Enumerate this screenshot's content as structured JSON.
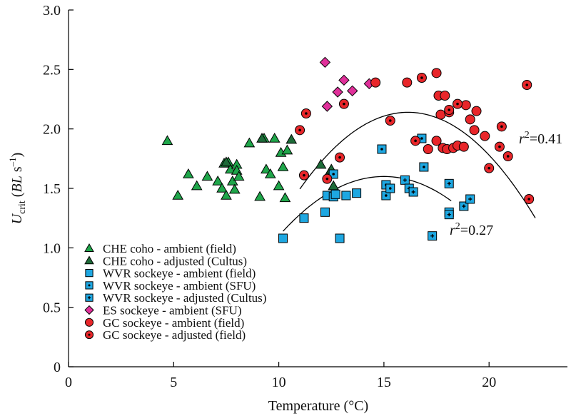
{
  "chart_data": {
    "type": "scatter",
    "xlabel": "Temperature (°C)",
    "ylabel": {
      "main": "U",
      "sub": "crit",
      "paren": "(BL s",
      "sup": "–1",
      "close": ")"
    },
    "xlim": [
      0,
      24
    ],
    "ylim": [
      0,
      3.0
    ],
    "x_ticks": [
      0,
      5,
      10,
      15,
      20
    ],
    "x_tick_labels": [
      "0",
      "5",
      "10",
      "15",
      "20"
    ],
    "y_ticks": [
      0,
      0.5,
      1.0,
      1.5,
      2.0,
      2.5,
      3.0
    ],
    "y_tick_labels": [
      "0",
      "0.5",
      "1.0",
      "1.5",
      "2.0",
      "2.5",
      "3.0"
    ],
    "grid": false,
    "legend_position": "bottom-left",
    "series": [
      {
        "name": "CHE coho - ambient (field)",
        "marker": "triangle",
        "color": "#1fa64a",
        "dot": false,
        "points": [
          [
            4.7,
            1.9
          ],
          [
            5.2,
            1.44
          ],
          [
            5.7,
            1.62
          ],
          [
            6.1,
            1.52
          ],
          [
            6.6,
            1.6
          ],
          [
            7.1,
            1.56
          ],
          [
            7.3,
            1.5
          ],
          [
            7.4,
            1.71
          ],
          [
            7.5,
            1.44
          ],
          [
            7.6,
            1.72
          ],
          [
            7.7,
            1.66
          ],
          [
            7.8,
            1.56
          ],
          [
            7.9,
            1.49
          ],
          [
            8.0,
            1.7
          ],
          [
            8.0,
            1.65
          ],
          [
            8.1,
            1.6
          ],
          [
            8.6,
            1.88
          ],
          [
            9.1,
            1.43
          ],
          [
            9.3,
            1.92
          ],
          [
            9.4,
            1.66
          ],
          [
            9.6,
            1.62
          ],
          [
            9.8,
            1.92
          ],
          [
            10.0,
            1.52
          ],
          [
            10.1,
            1.8
          ],
          [
            10.2,
            1.68
          ],
          [
            10.3,
            1.42
          ],
          [
            10.4,
            1.82
          ]
        ]
      },
      {
        "name": "CHE coho - adjusted (Cultus)",
        "marker": "triangle",
        "color": "#1d6b38",
        "dot": false,
        "points": [
          [
            7.5,
            1.72
          ],
          [
            9.2,
            1.92
          ],
          [
            10.6,
            1.91
          ],
          [
            12.0,
            1.7
          ],
          [
            12.4,
            1.63
          ],
          [
            12.5,
            1.66
          ],
          [
            12.6,
            1.52
          ]
        ]
      },
      {
        "name": "WVR sockeye - ambient (field)",
        "marker": "square",
        "color": "#1ea7e1",
        "dot": false,
        "points": [
          [
            10.2,
            1.08
          ],
          [
            11.2,
            1.25
          ],
          [
            12.2,
            1.3
          ],
          [
            12.3,
            1.44
          ],
          [
            12.6,
            1.43
          ],
          [
            12.7,
            1.45
          ],
          [
            12.9,
            1.08
          ],
          [
            13.2,
            1.44
          ],
          [
            13.7,
            1.46
          ]
        ]
      },
      {
        "name": "WVR sockeye - ambient (SFU)",
        "marker": "square",
        "color": "#1ea7e1",
        "dot": true,
        "points": [
          [
            12.6,
            1.62
          ],
          [
            14.9,
            1.83
          ],
          [
            15.1,
            1.53
          ],
          [
            15.1,
            1.44
          ],
          [
            15.3,
            1.5
          ],
          [
            16.8,
            1.92
          ],
          [
            16.9,
            1.68
          ]
        ]
      },
      {
        "name": "WVR sockeye - adjusted (Cultus)",
        "marker": "square",
        "color": "#1ea7e1",
        "dot": "cross",
        "points": [
          [
            16.0,
            1.57
          ],
          [
            16.2,
            1.5
          ],
          [
            16.4,
            1.47
          ],
          [
            17.3,
            1.1
          ],
          [
            18.1,
            1.54
          ],
          [
            18.1,
            1.3
          ],
          [
            18.1,
            1.28
          ],
          [
            18.8,
            1.35
          ],
          [
            19.1,
            1.41
          ]
        ]
      },
      {
        "name": "ES sockeye - ambient (SFU)",
        "marker": "diamond",
        "color": "#e0309a",
        "dot": false,
        "points": [
          [
            12.2,
            2.56
          ],
          [
            12.3,
            2.19
          ],
          [
            12.8,
            2.31
          ],
          [
            13.1,
            2.41
          ],
          [
            13.5,
            2.32
          ],
          [
            14.3,
            2.38
          ]
        ]
      },
      {
        "name": "GC sockeye - ambient (field)",
        "marker": "circle",
        "color": "#e8262a",
        "dot": false,
        "points": [
          [
            14.6,
            2.39
          ],
          [
            16.1,
            2.39
          ],
          [
            17.5,
            2.47
          ],
          [
            17.6,
            2.28
          ],
          [
            17.7,
            2.12
          ],
          [
            17.9,
            2.28
          ],
          [
            17.5,
            1.9
          ],
          [
            17.8,
            1.84
          ],
          [
            18.0,
            1.83
          ],
          [
            18.1,
            2.14
          ],
          [
            18.3,
            1.84
          ],
          [
            18.5,
            1.86
          ],
          [
            18.8,
            1.85
          ],
          [
            18.9,
            2.2
          ],
          [
            19.1,
            2.08
          ],
          [
            19.3,
            1.99
          ],
          [
            19.4,
            2.15
          ],
          [
            19.8,
            1.94
          ],
          [
            17.1,
            1.83
          ]
        ]
      },
      {
        "name": "GC sockeye - adjusted (field)",
        "marker": "circle",
        "color": "#e8262a",
        "dot": true,
        "points": [
          [
            11.0,
            1.99
          ],
          [
            11.2,
            1.61
          ],
          [
            11.3,
            2.13
          ],
          [
            12.3,
            1.58
          ],
          [
            12.9,
            1.76
          ],
          [
            13.1,
            2.21
          ],
          [
            15.3,
            2.07
          ],
          [
            16.5,
            1.9
          ],
          [
            16.8,
            2.43
          ],
          [
            18.1,
            2.16
          ],
          [
            18.5,
            2.21
          ],
          [
            20.0,
            1.67
          ],
          [
            20.5,
            1.85
          ],
          [
            20.6,
            2.02
          ],
          [
            20.9,
            1.77
          ],
          [
            21.8,
            2.37
          ],
          [
            21.9,
            1.41
          ]
        ]
      }
    ],
    "fits": [
      {
        "name": "GC sockeye fit",
        "label_r": "r",
        "label_sup": "2",
        "label_val": "=0.41",
        "x_range": [
          11.0,
          22.2
        ],
        "coeffs": [
          -4.2,
          0.785,
          -0.0243
        ]
      },
      {
        "name": "WVR sockeye fit",
        "label_r": "r",
        "label_sup": "2",
        "label_val": "=0.27",
        "x_range": [
          10.2,
          18.2
        ],
        "coeffs": [
          -2.9,
          0.6,
          -0.02
        ]
      }
    ]
  }
}
